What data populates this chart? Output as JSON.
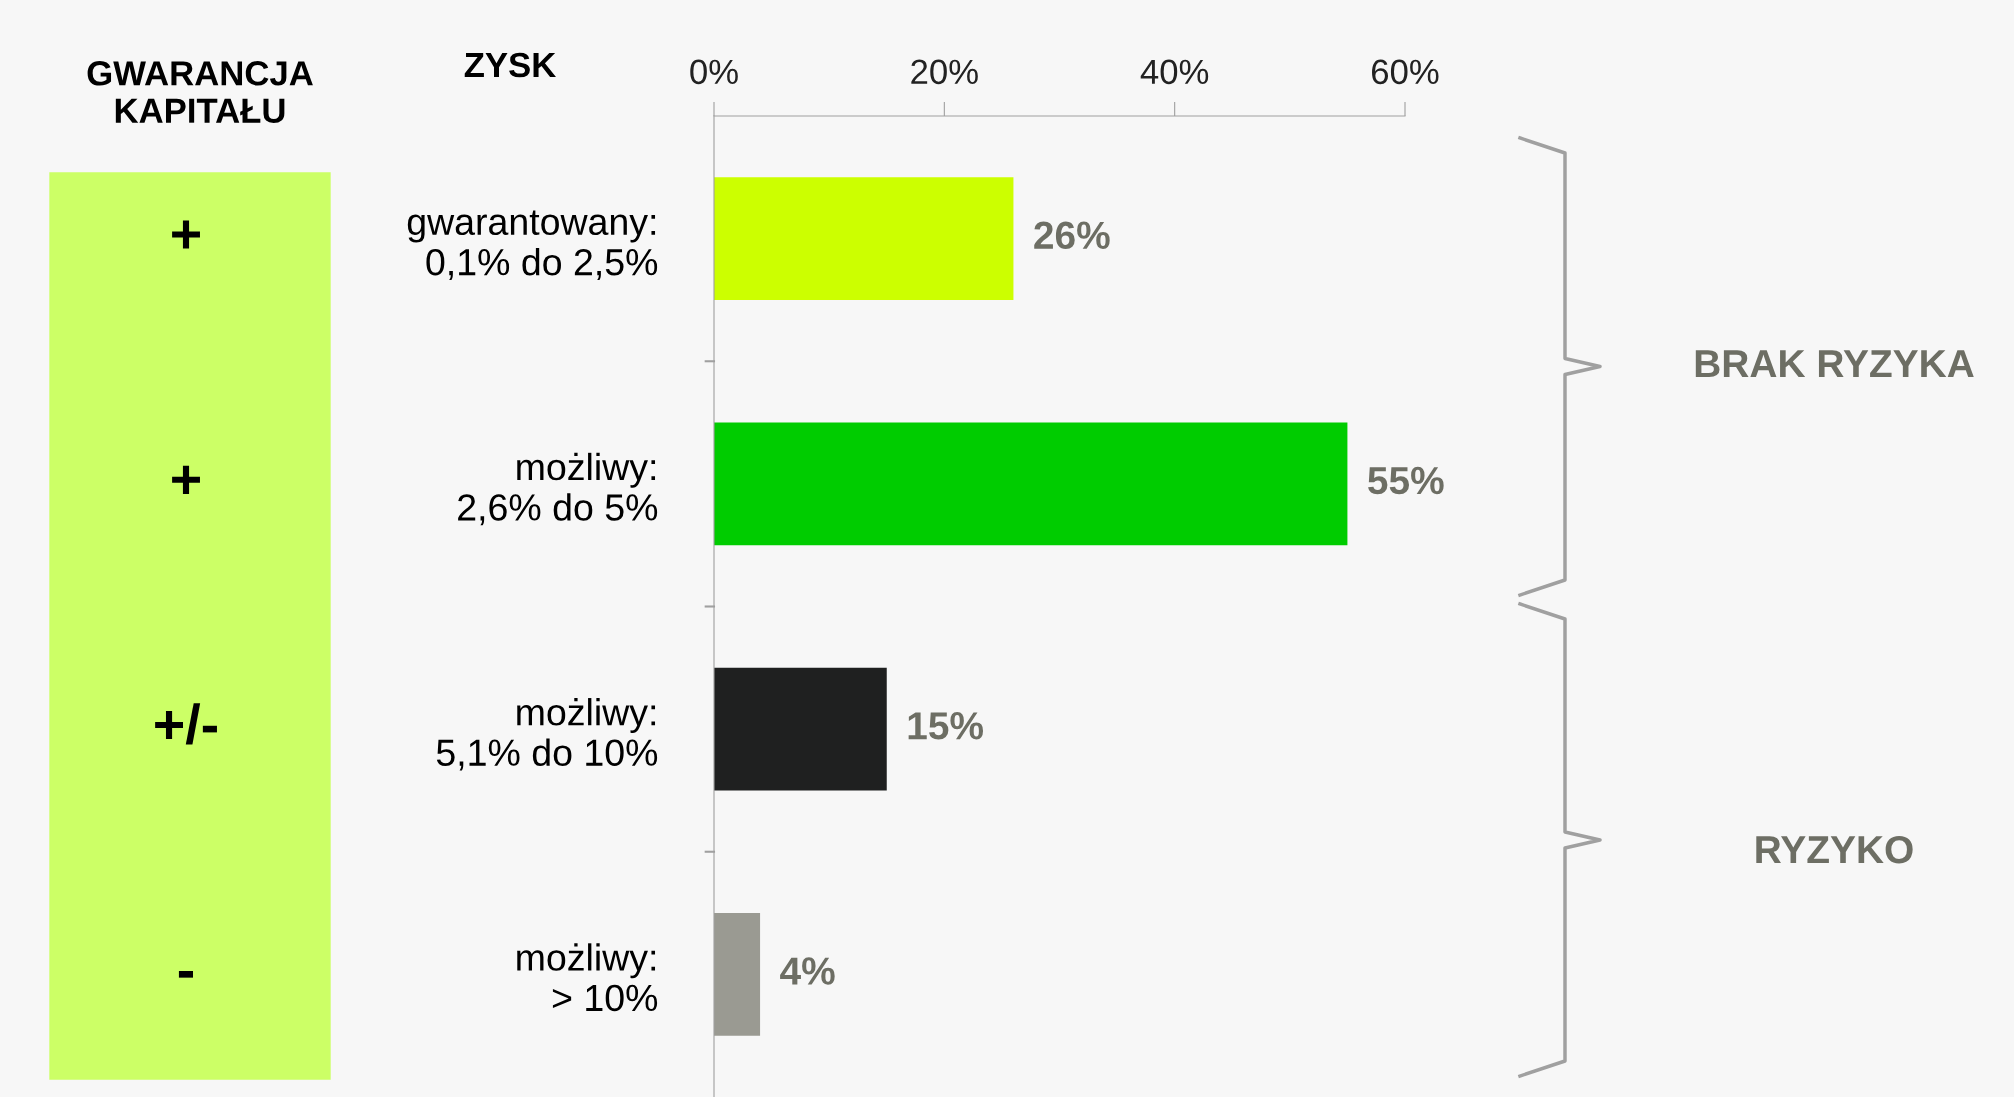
{
  "chart_data": {
    "type": "bar",
    "orientation": "horizontal",
    "categories": [
      "gwarantowany:\n0,1% do 2,5%",
      "możliwy:\n2,6% do 5%",
      "możliwy:\n5,1% do 10%",
      "możliwy:\n> 10%"
    ],
    "values": [
      26,
      55,
      15,
      4
    ],
    "colors": [
      "#ccff00",
      "#00cc00",
      "#1f2020",
      "#9a9a92"
    ],
    "value_labels": [
      "26%",
      "55%",
      "15%",
      "4%"
    ],
    "xlim": [
      0,
      60
    ],
    "xticks": [
      {
        "value": 0,
        "label": "0%"
      },
      {
        "value": 20,
        "label": "20%"
      },
      {
        "value": 40,
        "label": "40%"
      },
      {
        "value": 60,
        "label": "60%"
      }
    ],
    "grid": false,
    "legend": false,
    "annotations": [
      "GWARANCJA\nKAPITAŁU",
      "ZYSK",
      "+",
      "+",
      "+/-",
      "-",
      "BRAK RYZYKA",
      "RYZYKO"
    ]
  }
}
